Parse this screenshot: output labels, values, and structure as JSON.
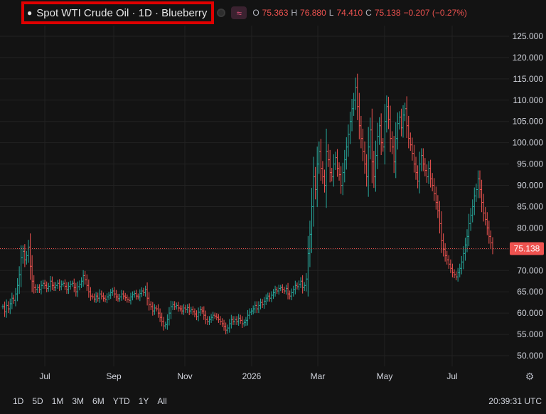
{
  "header": {
    "title": "Spot WTI Crude Oil · 1D · Blueberry",
    "ohlc": {
      "open_label": "O",
      "open": "75.363",
      "high_label": "H",
      "high": "76.880",
      "low_label": "L",
      "low": "74.410",
      "close_label": "C",
      "close": "75.138",
      "change": "−0.207 (−0.27%)"
    }
  },
  "ranges": [
    "1D",
    "5D",
    "1M",
    "3M",
    "6M",
    "YTD",
    "1Y",
    "All"
  ],
  "clock": "20:39:31 UTC",
  "price_label": "75.138",
  "colors": {
    "background": "#131313",
    "grid": "#222222",
    "up": "#26a69a",
    "down": "#ef5350",
    "price_line": "#ef5350"
  },
  "chart_data": {
    "type": "line",
    "style": "ohlc-bars",
    "x_ticks": [
      "Jul",
      "Sep",
      "Nov",
      "2026",
      "Mar",
      "May",
      "Jul"
    ],
    "y_ticks": [
      "125.000",
      "120.000",
      "115.000",
      "110.000",
      "105.000",
      "100.000",
      "95.000",
      "90.000",
      "85.000",
      "80.000",
      "75.000",
      "70.000",
      "65.000",
      "60.000",
      "55.000",
      "50.000"
    ],
    "ylim": [
      47.5,
      127.5
    ],
    "grid": true,
    "last_price": 75.138,
    "series": [
      {
        "values": [
          61.5,
          60.3,
          61.8,
          61.0,
          62.2,
          63.5,
          63.0,
          64.5,
          66.5,
          69.0,
          73.0,
          74.5,
          72.5,
          73.5,
          75.5,
          71.0,
          67.5,
          66.0,
          65.5,
          66.0,
          65.5,
          66.5,
          67.0,
          66.5,
          65.8,
          66.3,
          67.5,
          66.5,
          66.0,
          66.5,
          67.0,
          66.2,
          66.8,
          67.0,
          66.3,
          65.5,
          66.3,
          66.8,
          67.0,
          66.0,
          65.0,
          66.2,
          66.8,
          67.5,
          68.8,
          67.8,
          66.5,
          65.0,
          64.0,
          63.8,
          63.3,
          64.0,
          63.5,
          64.5,
          64.0,
          63.5,
          63.2,
          63.8,
          64.2,
          64.8,
          65.2,
          64.5,
          63.8,
          63.4,
          63.8,
          64.5,
          64.0,
          63.6,
          63.2,
          63.0,
          63.8,
          64.3,
          64.6,
          64.0,
          63.8,
          64.6,
          65.2,
          64.8,
          65.5,
          63.5,
          62.0,
          61.5,
          60.5,
          61.2,
          61.0,
          60.0,
          59.0,
          58.0,
          57.0,
          57.3,
          58.5,
          60.0,
          61.5,
          62.0,
          61.5,
          61.8,
          61.2,
          61.0,
          60.5,
          61.2,
          60.8,
          61.3,
          60.5,
          60.8,
          60.3,
          59.8,
          59.2,
          60.2,
          60.8,
          60.5,
          59.5,
          58.5,
          58.0,
          58.5,
          59.0,
          59.5,
          59.3,
          59.0,
          58.5,
          58.0,
          57.5,
          56.8,
          56.0,
          56.5,
          57.5,
          58.5,
          58.0,
          58.5,
          58.0,
          58.8,
          58.3,
          57.5,
          57.8,
          58.3,
          59.5,
          60.2,
          60.5,
          61.0,
          61.8,
          61.0,
          61.8,
          62.5,
          62.0,
          62.8,
          63.5,
          64.0,
          63.5,
          64.2,
          64.8,
          65.5,
          65.2,
          65.8,
          66.0,
          65.5,
          65.2,
          65.8,
          64.5,
          64.0,
          64.8,
          65.5,
          66.5,
          66.2,
          66.8,
          67.5,
          66.0,
          66.5,
          68.0,
          74.0,
          78.5,
          85.0,
          92.0,
          89.0,
          95.0,
          98.0,
          94.0,
          92.0,
          90.0,
          98.0,
          96.0,
          93.0,
          92.0,
          95.0,
          96.5,
          94.0,
          92.5,
          90.0,
          93.0,
          96.0,
          99.0,
          102.0,
          105.0,
          108.0,
          110.0,
          113.0,
          108.5,
          104.0,
          101.0,
          98.0,
          95.0,
          92.0,
          99.0,
          103.0,
          95.5,
          92.0,
          97.0,
          101.5,
          104.0,
          100.0,
          99.0,
          105.0,
          108.5,
          105.5,
          101.0,
          99.0,
          95.5,
          101.0,
          104.5,
          106.0,
          103.5,
          106.5,
          108.0,
          104.0,
          101.0,
          99.5,
          97.5,
          95.0,
          93.0,
          91.0,
          95.0,
          97.0,
          95.0,
          93.5,
          92.0,
          94.0,
          91.5,
          90.0,
          88.0,
          86.0,
          84.0,
          81.0,
          77.0,
          75.0,
          73.5,
          72.5,
          71.5,
          70.5,
          69.5,
          69.0,
          68.5,
          69.5,
          70.5,
          72.0,
          74.0,
          76.0,
          78.0,
          81.0,
          83.0,
          85.0,
          87.5,
          89.0,
          91.5,
          89.0,
          86.0,
          83.5,
          82.0,
          80.0,
          78.0,
          76.5,
          75.138
        ]
      }
    ]
  }
}
